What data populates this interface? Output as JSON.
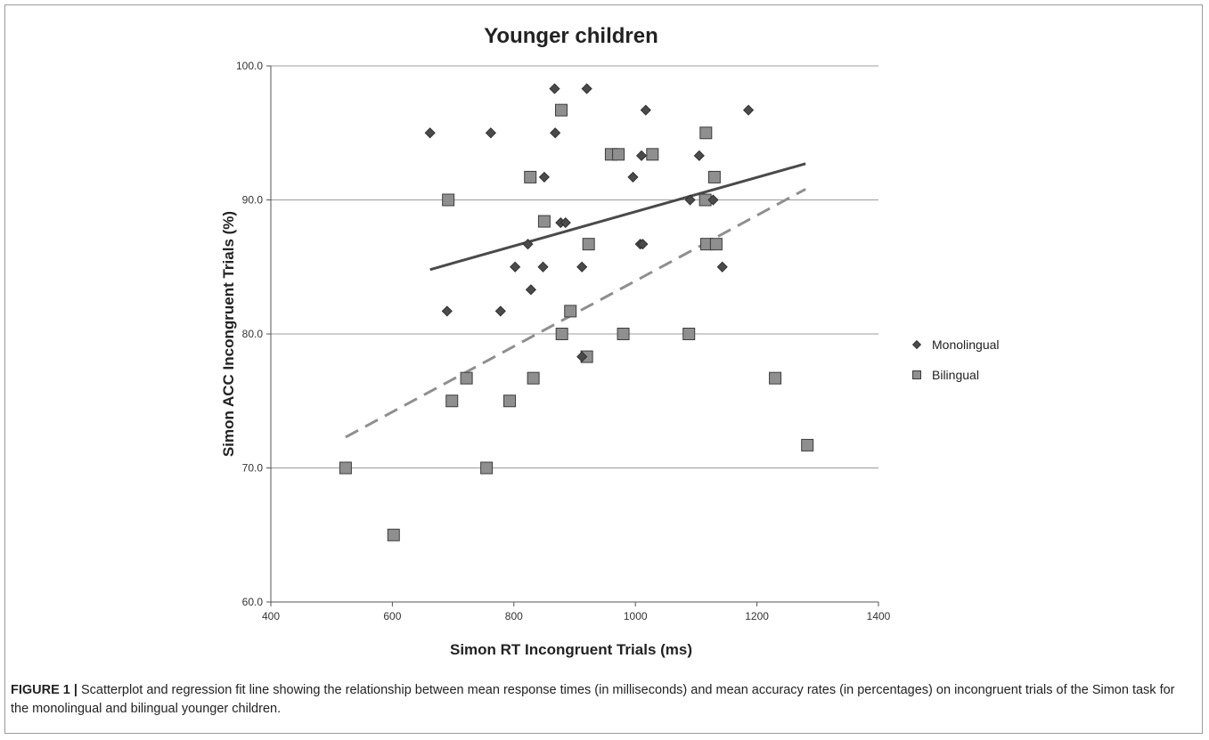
{
  "chart_data": {
    "type": "scatter",
    "title": "Younger children",
    "xlabel": "Simon RT Incongruent Trials (ms)",
    "ylabel": "Simon ACC Incongruent Trials (%)",
    "xlim": [
      400,
      1400
    ],
    "ylim": [
      60,
      100
    ],
    "xticks": [
      "400",
      "600",
      "800",
      "1000",
      "1200",
      "1400"
    ],
    "yticks": [
      "60.0",
      "70.0",
      "80.0",
      "90.0",
      "100.0"
    ],
    "grid": "horizontal",
    "legend_position": "right",
    "series": [
      {
        "name": "Monolingual",
        "marker": "diamond",
        "color": "#4a4a4a",
        "points": [
          [
            662,
            95.0
          ],
          [
            690,
            81.7
          ],
          [
            762,
            95.0
          ],
          [
            778,
            81.7
          ],
          [
            802,
            85.0
          ],
          [
            823,
            86.7
          ],
          [
            828,
            83.3
          ],
          [
            848,
            85.0
          ],
          [
            850,
            91.7
          ],
          [
            867,
            98.3
          ],
          [
            868,
            95.0
          ],
          [
            877,
            88.3
          ],
          [
            885,
            88.3
          ],
          [
            912,
            85.0
          ],
          [
            912,
            78.3
          ],
          [
            920,
            98.3
          ],
          [
            996,
            91.7
          ],
          [
            1008,
            86.7
          ],
          [
            1010,
            93.3
          ],
          [
            1012,
            86.7
          ],
          [
            1017,
            96.7
          ],
          [
            1090,
            90.0
          ],
          [
            1105,
            93.3
          ],
          [
            1128,
            90.0
          ],
          [
            1143,
            85.0
          ],
          [
            1186,
            96.7
          ]
        ],
        "fit_line": {
          "x": [
            662,
            1280
          ],
          "y": [
            84.8,
            92.7
          ],
          "style": "solid"
        }
      },
      {
        "name": "Bilingual",
        "marker": "square",
        "color": "#8f8f8f",
        "points": [
          [
            523,
            70.0
          ],
          [
            602,
            65.0
          ],
          [
            692,
            90.0
          ],
          [
            698,
            75.0
          ],
          [
            722,
            76.7
          ],
          [
            755,
            70.0
          ],
          [
            793,
            75.0
          ],
          [
            827,
            91.7
          ],
          [
            832,
            76.7
          ],
          [
            850,
            88.4
          ],
          [
            878,
            96.7
          ],
          [
            879,
            80.0
          ],
          [
            893,
            81.7
          ],
          [
            920,
            78.3
          ],
          [
            923,
            86.7
          ],
          [
            960,
            93.4
          ],
          [
            972,
            93.4
          ],
          [
            980,
            80.0
          ],
          [
            1028,
            93.4
          ],
          [
            1088,
            80.0
          ],
          [
            1115,
            90.0
          ],
          [
            1116,
            95.0
          ],
          [
            1117,
            86.7
          ],
          [
            1130,
            91.7
          ],
          [
            1133,
            86.7
          ],
          [
            1230,
            76.7
          ],
          [
            1283,
            71.7
          ]
        ],
        "fit_line": {
          "x": [
            523,
            1280
          ],
          "y": [
            72.3,
            90.8
          ],
          "style": "dashed"
        }
      }
    ]
  },
  "caption": {
    "label": "FIGURE 1 |",
    "text": " Scatterplot and regression fit line showing the relationship between mean response times (in milliseconds) and mean accuracy rates (in percentages) on incongruent trials of the Simon task for the monolingual and bilingual younger children."
  }
}
